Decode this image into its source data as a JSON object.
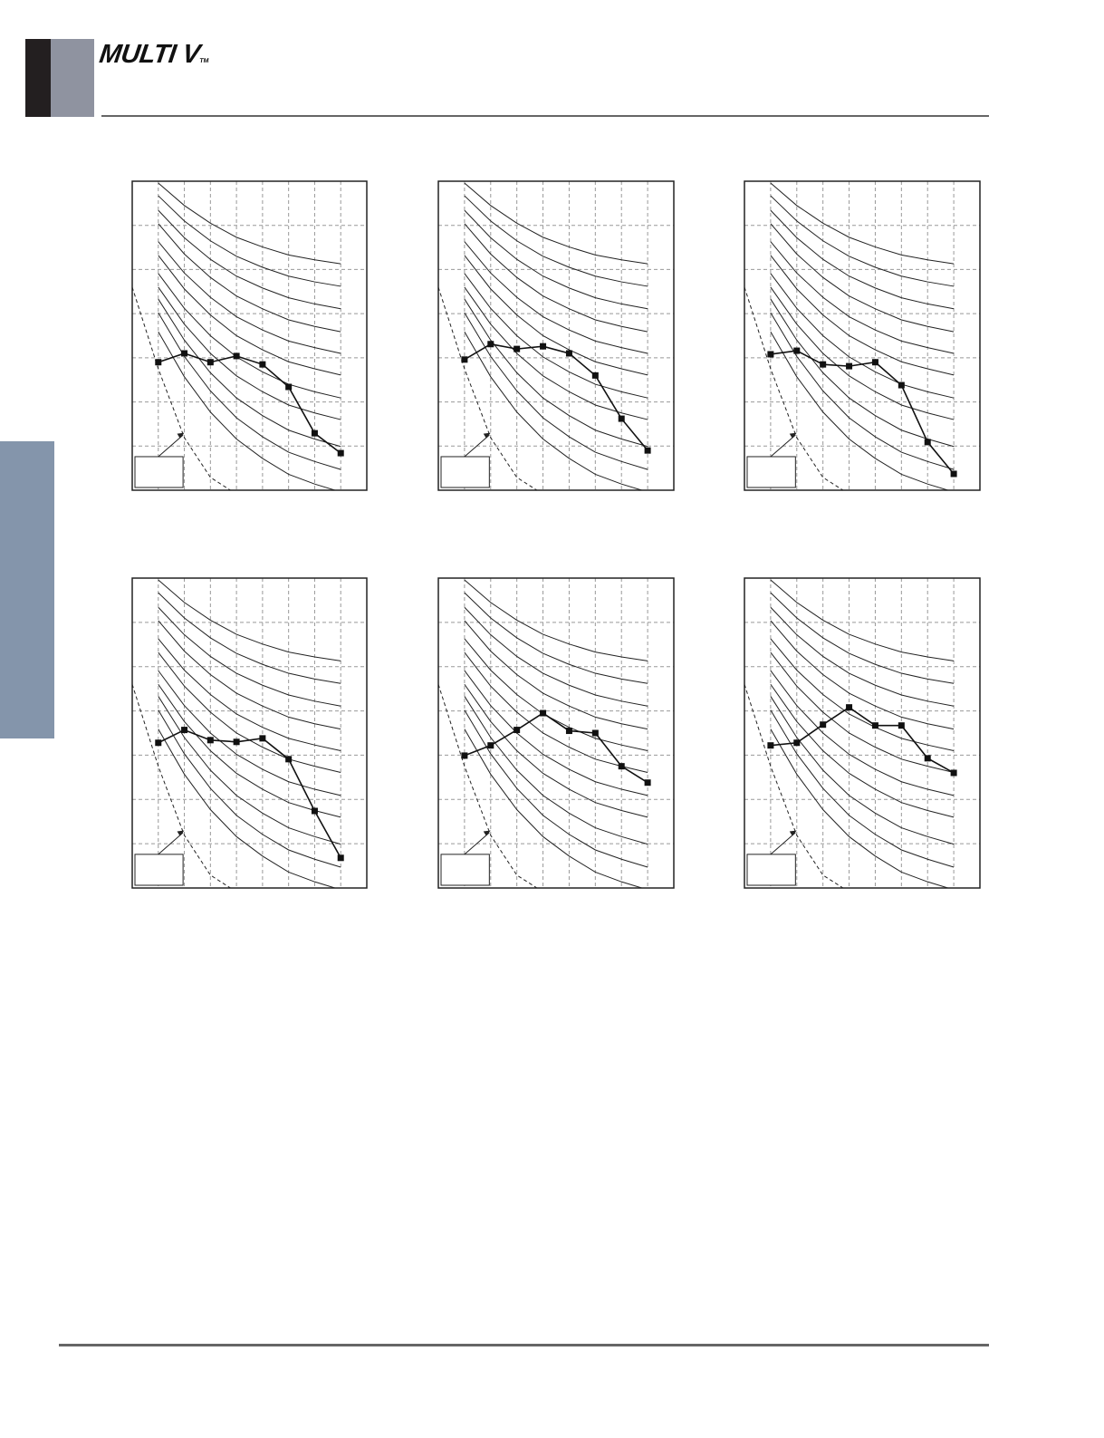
{
  "header": {
    "logo_text": "MULTI V",
    "logo_tm": "TM"
  },
  "colors": {
    "tab_black": "#231f20",
    "tab_gray": "#8f93a0",
    "side_tab": "#8495ab",
    "rule": "#666666",
    "curve": "#222222",
    "grid": "#999999"
  },
  "nc_reference_curves": [
    [
      6.96,
      6.45,
      6.05,
      5.73,
      5.51,
      5.33,
      5.22,
      5.13
    ],
    [
      6.67,
      6.1,
      5.65,
      5.3,
      5.05,
      4.85,
      4.72,
      4.62
    ],
    [
      6.34,
      5.72,
      5.23,
      4.85,
      4.58,
      4.36,
      4.22,
      4.11
    ],
    [
      6.04,
      5.35,
      4.82,
      4.4,
      4.11,
      3.86,
      3.71,
      3.59
    ],
    [
      5.63,
      4.92,
      4.37,
      3.93,
      3.63,
      3.38,
      3.23,
      3.1
    ],
    [
      5.32,
      4.56,
      3.97,
      3.5,
      3.18,
      2.91,
      2.75,
      2.61
    ],
    [
      4.91,
      4.12,
      3.5,
      3.02,
      2.68,
      2.4,
      2.23,
      2.09
    ],
    [
      4.6,
      3.76,
      3.1,
      2.59,
      2.23,
      1.93,
      1.75,
      1.6
    ],
    [
      4.33,
      3.4,
      2.66,
      2.09,
      1.69,
      1.36,
      1.16,
      0.99
    ],
    [
      4.02,
      3.03,
      2.25,
      1.64,
      1.21,
      0.86,
      0.65,
      0.47
    ],
    [
      3.59,
      2.57,
      1.77,
      1.16,
      0.72,
      0.36,
      0.14,
      -0.04
    ]
  ],
  "threshold_curve": {
    "x": [
      0,
      1,
      2,
      3,
      3.9
    ],
    "y": [
      4.6,
      2.75,
      1.19,
      0.29,
      -0.05
    ],
    "style": "dashed"
  },
  "chart_data": [
    {
      "type": "line",
      "xlim": [
        0,
        9
      ],
      "ylim": [
        0,
        7
      ],
      "grid": true,
      "x": [
        1,
        2,
        3,
        4,
        5,
        6,
        7,
        8
      ],
      "values": [
        2.9,
        3.1,
        2.9,
        3.04,
        2.85,
        2.34,
        1.29,
        0.84
      ]
    },
    {
      "type": "line",
      "xlim": [
        0,
        9
      ],
      "ylim": [
        0,
        7
      ],
      "grid": true,
      "x": [
        1,
        2,
        3,
        4,
        5,
        6,
        7,
        8
      ],
      "values": [
        2.96,
        3.31,
        3.2,
        3.26,
        3.1,
        2.6,
        1.62,
        0.9
      ]
    },
    {
      "type": "line",
      "xlim": [
        0,
        9
      ],
      "ylim": [
        0,
        7
      ],
      "grid": true,
      "x": [
        1,
        2,
        3,
        4,
        5,
        6,
        7,
        8
      ],
      "values": [
        3.08,
        3.16,
        2.85,
        2.81,
        2.9,
        2.38,
        1.09,
        0.37
      ]
    },
    {
      "type": "line",
      "xlim": [
        0,
        9
      ],
      "ylim": [
        0,
        7
      ],
      "grid": true,
      "x": [
        1,
        2,
        3,
        4,
        5,
        6,
        7,
        8
      ],
      "values": [
        3.28,
        3.57,
        3.34,
        3.3,
        3.38,
        2.91,
        1.74,
        0.68
      ]
    },
    {
      "type": "line",
      "xlim": [
        0,
        9
      ],
      "ylim": [
        0,
        7
      ],
      "grid": true,
      "x": [
        1,
        2,
        3,
        4,
        5,
        6,
        7,
        8
      ],
      "values": [
        2.99,
        3.22,
        3.57,
        3.95,
        3.55,
        3.5,
        2.75,
        2.38
      ]
    },
    {
      "type": "line",
      "xlim": [
        0,
        9
      ],
      "ylim": [
        0,
        7
      ],
      "grid": true,
      "x": [
        1,
        2,
        3,
        4,
        5,
        6,
        7,
        8
      ],
      "values": [
        3.22,
        3.28,
        3.69,
        4.08,
        3.67,
        3.67,
        2.93,
        2.6
      ]
    }
  ]
}
